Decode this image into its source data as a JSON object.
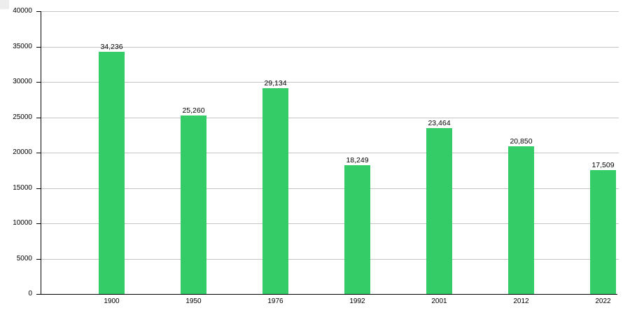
{
  "chart_data": {
    "type": "bar",
    "title": "",
    "xlabel": "",
    "ylabel": "",
    "categories": [
      "1900",
      "1950",
      "1976",
      "1992",
      "2001",
      "2012",
      "2022"
    ],
    "values": [
      34236,
      25260,
      29134,
      18249,
      23464,
      20850,
      17509
    ],
    "value_labels": [
      "34,236",
      "25,260",
      "29,134",
      "18,249",
      "23,464",
      "20,850",
      "17,509"
    ],
    "ylim": [
      0,
      40000
    ],
    "ytick_interval": 5000,
    "ytick_labels": [
      "0",
      "5000",
      "10000",
      "15000",
      "20000",
      "25000",
      "30000",
      "35000",
      "40000"
    ],
    "grid": true,
    "legend_position": "none",
    "bar_color": "#33cc66"
  },
  "colors": {
    "bar": "#33cc66",
    "gridline": "#c4c4c4",
    "axis": "#000000",
    "text": "#000000",
    "background": "#ffffff"
  }
}
